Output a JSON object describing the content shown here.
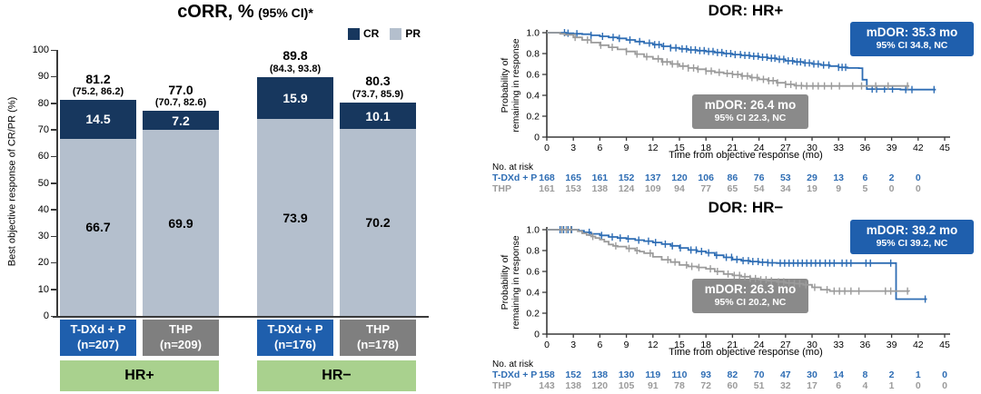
{
  "chart_data": [
    {
      "type": "bar",
      "title": "cORR, %",
      "title_suffix": "(95% CI)*",
      "ylabel": "Best objective response of CR/PR (%)",
      "ylim": [
        0,
        100
      ],
      "ytick_step": 10,
      "legend": [
        {
          "label": "CR",
          "color": "#17375e"
        },
        {
          "label": "PR",
          "color": "#b4bfcd"
        }
      ],
      "cr_color": "#17375e",
      "pr_color": "#b4bfcd",
      "group_color": "#a9d18e",
      "groups": [
        {
          "label": "HR+",
          "bars": [
            {
              "arm": "T-DXd + P",
              "n_label": "(n=207)",
              "arm_color": "#1f5fad",
              "total": "81.2",
              "ci": "(75.2, 86.2)",
              "cr": 14.5,
              "pr": 66.7
            },
            {
              "arm": "THP",
              "n_label": "(n=209)",
              "arm_color": "#7f7f7f",
              "total": "77.0",
              "ci": "(70.7, 82.6)",
              "cr": 7.2,
              "pr": 69.9
            }
          ]
        },
        {
          "label": "HR−",
          "bars": [
            {
              "arm": "T-DXd + P",
              "n_label": "(n=176)",
              "arm_color": "#1f5fad",
              "total": "89.8",
              "ci": "(84.3, 93.8)",
              "cr": 15.9,
              "pr": 73.9
            },
            {
              "arm": "THP",
              "n_label": "(n=178)",
              "arm_color": "#7f7f7f",
              "total": "80.3",
              "ci": "(73.7, 85.9)",
              "cr": 10.1,
              "pr": 70.2
            }
          ]
        }
      ]
    },
    {
      "type": "line",
      "subtype": "kaplan-meier",
      "title": "DOR: HR+",
      "ylabel_lines": [
        "Probability of",
        "remaining in response"
      ],
      "xlabel": "Time from objective response (mo)",
      "xlim": [
        0,
        45
      ],
      "xtick_step": 3,
      "ylim": [
        0,
        1.0
      ],
      "ytick_step": 0.2,
      "series": [
        {
          "name": "T-DXd + P",
          "color": "#2e6db4",
          "points": [
            [
              0,
              1
            ],
            [
              1.8,
              1
            ],
            [
              2.2,
              0.995
            ],
            [
              3,
              0.99
            ],
            [
              4,
              0.985
            ],
            [
              5,
              0.975
            ],
            [
              6,
              0.965
            ],
            [
              7,
              0.955
            ],
            [
              8,
              0.945
            ],
            [
              9,
              0.93
            ],
            [
              10,
              0.915
            ],
            [
              11,
              0.9
            ],
            [
              12,
              0.885
            ],
            [
              13,
              0.87
            ],
            [
              14,
              0.855
            ],
            [
              15,
              0.845
            ],
            [
              16,
              0.835
            ],
            [
              17,
              0.828
            ],
            [
              18,
              0.82
            ],
            [
              19,
              0.81
            ],
            [
              20,
              0.8
            ],
            [
              21,
              0.79
            ],
            [
              22,
              0.783
            ],
            [
              23,
              0.775
            ],
            [
              24,
              0.765
            ],
            [
              25,
              0.755
            ],
            [
              26,
              0.745
            ],
            [
              27,
              0.73
            ],
            [
              28,
              0.72
            ],
            [
              29,
              0.71
            ],
            [
              30,
              0.7
            ],
            [
              31,
              0.69
            ],
            [
              32,
              0.68
            ],
            [
              33,
              0.668
            ],
            [
              34,
              0.662
            ],
            [
              35.3,
              0.66
            ],
            [
              35.7,
              0.55
            ],
            [
              36.2,
              0.46
            ],
            [
              38,
              0.46
            ],
            [
              40,
              0.455
            ],
            [
              44,
              0.455
            ]
          ],
          "censor_x": [
            2,
            2.4,
            3.4,
            5,
            6.3,
            7.5,
            8.2,
            9.4,
            10.5,
            11.6,
            12.2,
            12.7,
            13.2,
            14,
            14.6,
            15.3,
            15.8,
            16.3,
            16.8,
            17.3,
            17.8,
            18.3,
            18.8,
            19.3,
            19.8,
            20.3,
            20.8,
            21.3,
            21.9,
            22.4,
            22.9,
            23.4,
            23.9,
            24.4,
            24.9,
            25.4,
            25.8,
            26.3,
            26.8,
            27.3,
            27.8,
            28.3,
            28.7,
            29.2,
            29.7,
            30.2,
            30.7,
            31.3,
            31.9,
            33,
            33.4,
            33.8,
            36.8,
            37.3,
            38.2,
            39.1,
            40.6,
            41.3,
            43.8
          ]
        },
        {
          "name": "THP",
          "color": "#9b9b9b",
          "points": [
            [
              0,
              1
            ],
            [
              1,
              1
            ],
            [
              1.5,
              0.99
            ],
            [
              2,
              0.98
            ],
            [
              3,
              0.955
            ],
            [
              4,
              0.93
            ],
            [
              5,
              0.905
            ],
            [
              6,
              0.88
            ],
            [
              7,
              0.86
            ],
            [
              8,
              0.84
            ],
            [
              9,
              0.82
            ],
            [
              10,
              0.795
            ],
            [
              11,
              0.77
            ],
            [
              12,
              0.75
            ],
            [
              13,
              0.72
            ],
            [
              14,
              0.7
            ],
            [
              15,
              0.68
            ],
            [
              16,
              0.662
            ],
            [
              17,
              0.65
            ],
            [
              18,
              0.632
            ],
            [
              19,
              0.62
            ],
            [
              20,
              0.61
            ],
            [
              21,
              0.6
            ],
            [
              22,
              0.585
            ],
            [
              23,
              0.57
            ],
            [
              24,
              0.553
            ],
            [
              25,
              0.54
            ],
            [
              26,
              0.52
            ],
            [
              27,
              0.505
            ],
            [
              28,
              0.492
            ],
            [
              29,
              0.49
            ],
            [
              41,
              0.49
            ]
          ],
          "censor_x": [
            3.2,
            4.6,
            6.1,
            7.4,
            9,
            10.2,
            11.3,
            12.6,
            13.1,
            13.6,
            14.2,
            14.8,
            15.4,
            16,
            16.6,
            17.1,
            18,
            18.6,
            19.5,
            20.4,
            21,
            21.6,
            22.1,
            22.7,
            23.2,
            23.8,
            24.5,
            25.1,
            25.6,
            26.1,
            27,
            27.6,
            28.2,
            28.8,
            29.4,
            30.1,
            30.7,
            31.4,
            32.2,
            33.1,
            34.6,
            35.6,
            37.2,
            38.6,
            40.8
          ]
        }
      ],
      "annotations": [
        {
          "line1": "mDOR: 35.3 mo",
          "line2": "95% CI 34.8, NC",
          "bg": "#1f5fad"
        },
        {
          "line1": "mDOR: 26.4 mo",
          "line2": "95% CI 22.3, NC",
          "bg": "#8a8a8a"
        }
      ],
      "at_risk": {
        "label": "No. at risk",
        "rows": [
          {
            "name": "T-DXd + P",
            "color": "#2e6db4",
            "values": [
              168,
              165,
              161,
              152,
              137,
              120,
              106,
              86,
              76,
              53,
              29,
              13,
              6,
              2,
              0
            ]
          },
          {
            "name": "THP",
            "color": "#9b9b9b",
            "values": [
              161,
              153,
              138,
              124,
              109,
              94,
              77,
              65,
              54,
              34,
              19,
              9,
              5,
              0,
              0
            ]
          }
        ]
      }
    },
    {
      "type": "line",
      "subtype": "kaplan-meier",
      "title": "DOR: HR−",
      "ylabel_lines": [
        "Probability of",
        "remaining in response"
      ],
      "xlabel": "Time from objective response (mo)",
      "xlim": [
        0,
        45
      ],
      "xtick_step": 3,
      "ylim": [
        0,
        1.0
      ],
      "ytick_step": 0.2,
      "series": [
        {
          "name": "T-DXd + P",
          "color": "#2e6db4",
          "points": [
            [
              0,
              1
            ],
            [
              3.2,
              1
            ],
            [
              3.6,
              0.99
            ],
            [
              4.2,
              0.975
            ],
            [
              5,
              0.96
            ],
            [
              6,
              0.945
            ],
            [
              7,
              0.93
            ],
            [
              8,
              0.92
            ],
            [
              9,
              0.912
            ],
            [
              10,
              0.9
            ],
            [
              11,
              0.89
            ],
            [
              12,
              0.877
            ],
            [
              13,
              0.862
            ],
            [
              14,
              0.845
            ],
            [
              15,
              0.825
            ],
            [
              16,
              0.805
            ],
            [
              17,
              0.792
            ],
            [
              18,
              0.778
            ],
            [
              19,
              0.755
            ],
            [
              20,
              0.735
            ],
            [
              21,
              0.715
            ],
            [
              22,
              0.703
            ],
            [
              23,
              0.695
            ],
            [
              24,
              0.688
            ],
            [
              25,
              0.683
            ],
            [
              26,
              0.68
            ],
            [
              39.2,
              0.68
            ],
            [
              39.5,
              0.335
            ],
            [
              43,
              0.335
            ]
          ],
          "censor_x": [
            1.5,
            1.9,
            2.4,
            2.8,
            4.8,
            6.2,
            7.4,
            8.3,
            9.2,
            10.4,
            11.5,
            12.3,
            13.4,
            14.2,
            15.1,
            16.3,
            16.9,
            17.5,
            18.3,
            19.2,
            20.3,
            20.9,
            21.5,
            22.2,
            22.8,
            23.3,
            23.9,
            24.4,
            25,
            25.5,
            26.4,
            26.9,
            27.4,
            27.9,
            28.4,
            28.9,
            29.4,
            29.9,
            30.4,
            30.9,
            31.5,
            32,
            32.5,
            33.4,
            33.9,
            34.4,
            36.1,
            36.6,
            38.9,
            42.8
          ]
        },
        {
          "name": "THP",
          "color": "#9b9b9b",
          "points": [
            [
              0,
              1
            ],
            [
              3,
              1
            ],
            [
              3.5,
              0.985
            ],
            [
              4,
              0.965
            ],
            [
              4.5,
              0.95
            ],
            [
              5,
              0.935
            ],
            [
              5.5,
              0.92
            ],
            [
              6,
              0.905
            ],
            [
              6.5,
              0.885
            ],
            [
              7,
              0.858
            ],
            [
              7.5,
              0.845
            ],
            [
              8,
              0.838
            ],
            [
              9,
              0.82
            ],
            [
              10,
              0.8
            ],
            [
              10.5,
              0.79
            ],
            [
              11,
              0.775
            ],
            [
              12,
              0.74
            ],
            [
              13,
              0.712
            ],
            [
              14,
              0.69
            ],
            [
              15,
              0.662
            ],
            [
              16,
              0.648
            ],
            [
              17,
              0.638
            ],
            [
              18,
              0.625
            ],
            [
              19,
              0.6
            ],
            [
              20,
              0.575
            ],
            [
              21,
              0.562
            ],
            [
              22,
              0.55
            ],
            [
              23,
              0.532
            ],
            [
              24,
              0.52
            ],
            [
              25,
              0.51
            ],
            [
              26,
              0.5
            ],
            [
              27,
              0.49
            ],
            [
              28,
              0.483
            ],
            [
              29,
              0.472
            ],
            [
              30,
              0.448
            ],
            [
              31,
              0.425
            ],
            [
              32,
              0.412
            ],
            [
              41,
              0.41
            ]
          ],
          "censor_x": [
            1.7,
            2.2,
            2.7,
            5.2,
            7.8,
            9.3,
            10.2,
            11.7,
            13.7,
            14.5,
            15.8,
            16.4,
            17.2,
            18.5,
            19.3,
            20.5,
            21.2,
            21.8,
            22.4,
            23,
            23.6,
            24.2,
            24.8,
            25.4,
            26.2,
            26.8,
            27.4,
            28,
            28.6,
            29.3,
            30.3,
            31.7,
            32.5,
            33.1,
            33.7,
            34.4,
            35.3,
            38.3,
            38.9,
            40.8
          ]
        }
      ],
      "annotations": [
        {
          "line1": "mDOR: 39.2 mo",
          "line2": "95% CI 39.2, NC",
          "bg": "#1f5fad"
        },
        {
          "line1": "mDOR: 26.3 mo",
          "line2": "95% CI 20.2, NC",
          "bg": "#8a8a8a"
        }
      ],
      "at_risk": {
        "label": "No. at risk",
        "rows": [
          {
            "name": "T-DXd + P",
            "color": "#2e6db4",
            "values": [
              158,
              152,
              138,
              130,
              119,
              110,
              93,
              82,
              70,
              47,
              30,
              14,
              8,
              2,
              1,
              0
            ]
          },
          {
            "name": "THP",
            "color": "#9b9b9b",
            "values": [
              143,
              138,
              120,
              105,
              91,
              78,
              72,
              60,
              51,
              32,
              17,
              6,
              4,
              1,
              0,
              0
            ]
          }
        ]
      }
    }
  ]
}
